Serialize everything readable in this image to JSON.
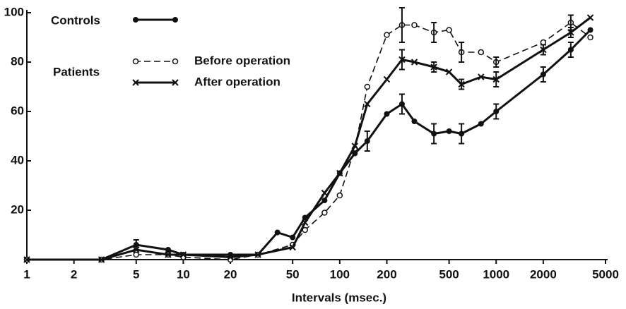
{
  "chart_data": {
    "type": "line",
    "x_label": "Intervals (msec.)",
    "legend_group": "Patients",
    "xscale": "log",
    "xlim": [
      1,
      5000
    ],
    "ylim": [
      0,
      100
    ],
    "xticks": [
      1,
      2,
      5,
      10,
      20,
      50,
      100,
      200,
      500,
      1000,
      2000,
      5000
    ],
    "yticks": [
      20,
      40,
      60,
      80,
      100
    ],
    "series": [
      {
        "name": "Controls",
        "color": "#111111",
        "marker": "dot",
        "dashed": false,
        "x": [
          1,
          3,
          5,
          8,
          10,
          20,
          30,
          40,
          50,
          60,
          80,
          100,
          125,
          150,
          200,
          250,
          300,
          400,
          500,
          600,
          800,
          1000,
          2000,
          3000,
          4000
        ],
        "values": [
          0,
          0,
          6,
          4,
          2,
          2,
          2,
          11,
          9,
          17,
          24,
          35,
          43,
          48,
          59,
          63,
          56,
          51,
          52,
          51,
          55,
          60,
          75,
          85,
          93
        ],
        "errors": [
          null,
          null,
          2,
          null,
          null,
          null,
          null,
          null,
          null,
          null,
          null,
          null,
          null,
          4,
          null,
          4,
          null,
          4,
          null,
          4,
          null,
          3,
          3,
          3,
          null
        ]
      },
      {
        "name": "Before operation",
        "color": "#111111",
        "marker": "circle",
        "dashed": true,
        "x": [
          1,
          3,
          5,
          8,
          10,
          20,
          30,
          50,
          60,
          80,
          100,
          125,
          150,
          200,
          250,
          300,
          400,
          500,
          600,
          800,
          1000,
          2000,
          3000,
          4000
        ],
        "values": [
          0,
          0,
          2,
          2,
          1,
          0,
          2,
          6,
          12,
          19,
          26,
          45,
          70,
          91,
          95,
          95,
          92,
          93,
          84,
          84,
          80,
          88,
          96,
          90
        ],
        "errors": [
          null,
          null,
          null,
          null,
          null,
          null,
          null,
          null,
          null,
          null,
          null,
          null,
          null,
          null,
          7,
          null,
          4,
          null,
          4,
          null,
          2,
          null,
          3,
          null
        ]
      },
      {
        "name": "After operation",
        "color": "#111111",
        "marker": "cross",
        "dashed": false,
        "x": [
          1,
          3,
          5,
          8,
          10,
          20,
          30,
          50,
          60,
          80,
          100,
          125,
          150,
          200,
          250,
          300,
          400,
          500,
          600,
          800,
          1000,
          2000,
          3000,
          4000
        ],
        "values": [
          0,
          0,
          4,
          2,
          2,
          1,
          2,
          5,
          15,
          27,
          35,
          46,
          63,
          73,
          81,
          80,
          78,
          76,
          71,
          74,
          73,
          85,
          92,
          98
        ],
        "errors": [
          null,
          null,
          null,
          null,
          null,
          null,
          null,
          null,
          null,
          null,
          null,
          null,
          null,
          null,
          4,
          null,
          2,
          null,
          2,
          null,
          3,
          2,
          2,
          null
        ]
      }
    ]
  }
}
